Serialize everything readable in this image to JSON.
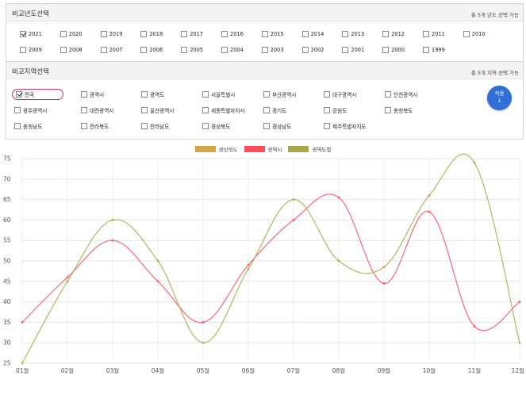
{
  "year_panel": {
    "title": "비교년도선택",
    "note": "총 5개 년도 선택 가능",
    "years": [
      {
        "label": "2021",
        "checked": true
      },
      {
        "label": "2020",
        "checked": false
      },
      {
        "label": "2019",
        "checked": false
      },
      {
        "label": "2018",
        "checked": false
      },
      {
        "label": "2017",
        "checked": false
      },
      {
        "label": "2016",
        "checked": false
      },
      {
        "label": "2015",
        "checked": false
      },
      {
        "label": "2014",
        "checked": false
      },
      {
        "label": "2013",
        "checked": false
      },
      {
        "label": "2012",
        "checked": false
      },
      {
        "label": "2011",
        "checked": false
      },
      {
        "label": "2010",
        "checked": false
      },
      {
        "label": "2009",
        "checked": false
      },
      {
        "label": "2008",
        "checked": false
      },
      {
        "label": "2007",
        "checked": false
      },
      {
        "label": "2006",
        "checked": false
      },
      {
        "label": "2005",
        "checked": false
      },
      {
        "label": "2004",
        "checked": false
      },
      {
        "label": "2003",
        "checked": false
      },
      {
        "label": "2002",
        "checked": false
      },
      {
        "label": "2001",
        "checked": false
      },
      {
        "label": "2000",
        "checked": false
      },
      {
        "label": "1999",
        "checked": false
      }
    ]
  },
  "region_panel": {
    "title": "비교지역선택",
    "note": "총 5개 지역 선택 가능",
    "apply_label": "적용",
    "apply_arrow": "↓",
    "regions": [
      {
        "label": "전국",
        "checked": true
      },
      {
        "label": "광역시",
        "checked": false
      },
      {
        "label": "광역도",
        "checked": false
      },
      {
        "label": "서울특별시",
        "checked": false
      },
      {
        "label": "부산광역시",
        "checked": false
      },
      {
        "label": "대구광역시",
        "checked": false
      },
      {
        "label": "인천광역시",
        "checked": false
      },
      {
        "label": "광주광역시",
        "checked": false
      },
      {
        "label": "대전광역시",
        "checked": false
      },
      {
        "label": "울산광역시",
        "checked": false
      },
      {
        "label": "세종특별자치시",
        "checked": false
      },
      {
        "label": "경기도",
        "checked": false
      },
      {
        "label": "강원도",
        "checked": false
      },
      {
        "label": "충청북도",
        "checked": false
      },
      {
        "label": "충청남도",
        "checked": false
      },
      {
        "label": "전라북도",
        "checked": false
      },
      {
        "label": "전라남도",
        "checked": false
      },
      {
        "label": "경상북도",
        "checked": false
      },
      {
        "label": "경상남도",
        "checked": false
      },
      {
        "label": "제주특별자치도",
        "checked": false
      }
    ]
  },
  "chart_data": {
    "type": "line",
    "title": "",
    "xlabel": "",
    "ylabel": "",
    "categories": [
      "01월",
      "02월",
      "03월",
      "04월",
      "05월",
      "06월",
      "07월",
      "08월",
      "09월",
      "10월",
      "11월",
      "12월"
    ],
    "ylim": [
      25,
      75
    ],
    "yticks": [
      25,
      30,
      35,
      40,
      45,
      50,
      55,
      60,
      65,
      70,
      75
    ],
    "grid": true,
    "legend_position": "top-center",
    "series": [
      {
        "name": "경상북도",
        "color": "#d4a64a",
        "values": [
          null,
          null,
          null,
          null,
          null,
          null,
          null,
          null,
          null,
          null,
          null,
          null
        ]
      },
      {
        "name": "광역시",
        "color": "#ff4d5e",
        "values": [
          35,
          46,
          55,
          45,
          35,
          49,
          60,
          65.5,
          44.5,
          62,
          34,
          40
        ]
      },
      {
        "name": "광역도별",
        "color": "#a8a84a",
        "values": [
          25,
          45,
          60,
          50,
          30,
          48,
          65,
          50,
          48.5,
          66,
          74,
          30
        ]
      }
    ]
  }
}
